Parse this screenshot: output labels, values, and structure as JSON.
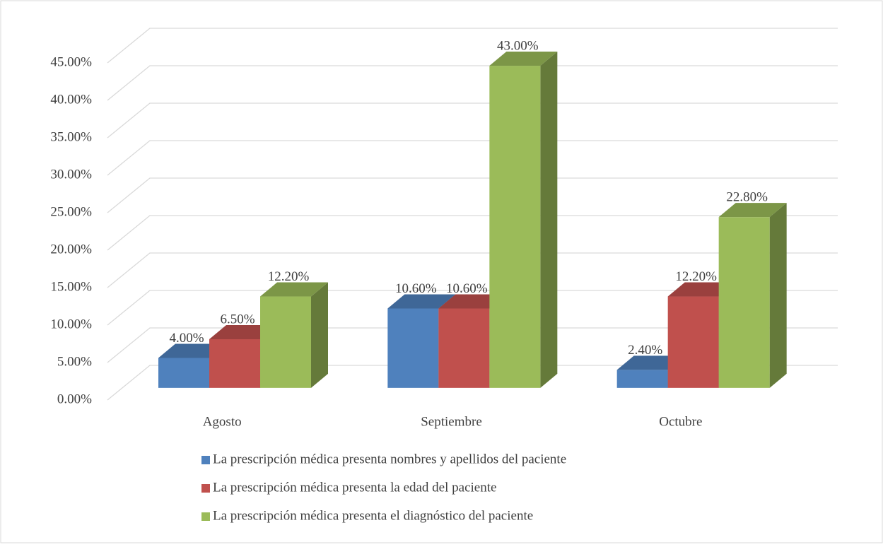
{
  "chart_data": {
    "type": "bar3d",
    "categories": [
      "Agosto",
      "Septiembre",
      "Octubre"
    ],
    "series": [
      {
        "name": "La prescripción médica presenta nombres y apellidos del paciente",
        "color": "#4f81bd",
        "values": [
          4.0,
          10.6,
          2.4
        ],
        "value_labels": [
          "4.00%",
          "10.60%",
          "2.40%"
        ]
      },
      {
        "name": "La prescripción médica presenta la edad del paciente",
        "color": "#c0504d",
        "values": [
          6.5,
          10.6,
          12.2
        ],
        "value_labels": [
          "6.50%",
          "10.60%",
          "12.20%"
        ]
      },
      {
        "name": "La prescripción médica presenta el diagnóstico del paciente",
        "color": "#9bbb59",
        "values": [
          12.2,
          43.0,
          22.8
        ],
        "value_labels": [
          "12.20%",
          "43.00%",
          "22.80%"
        ]
      }
    ],
    "ylim": [
      0,
      45
    ],
    "yticks": [
      {
        "value": 0,
        "label": "0.00%"
      },
      {
        "value": 5,
        "label": "5.00%"
      },
      {
        "value": 10,
        "label": "10.00%"
      },
      {
        "value": 15,
        "label": "15.00%"
      },
      {
        "value": 20,
        "label": "20.00%"
      },
      {
        "value": 25,
        "label": "25.00%"
      },
      {
        "value": 30,
        "label": "30.00%"
      },
      {
        "value": 35,
        "label": "35.00%"
      },
      {
        "value": 40,
        "label": "40.00%"
      },
      {
        "value": 45,
        "label": "45.00%"
      }
    ],
    "grid": true,
    "legend": "bottom"
  }
}
